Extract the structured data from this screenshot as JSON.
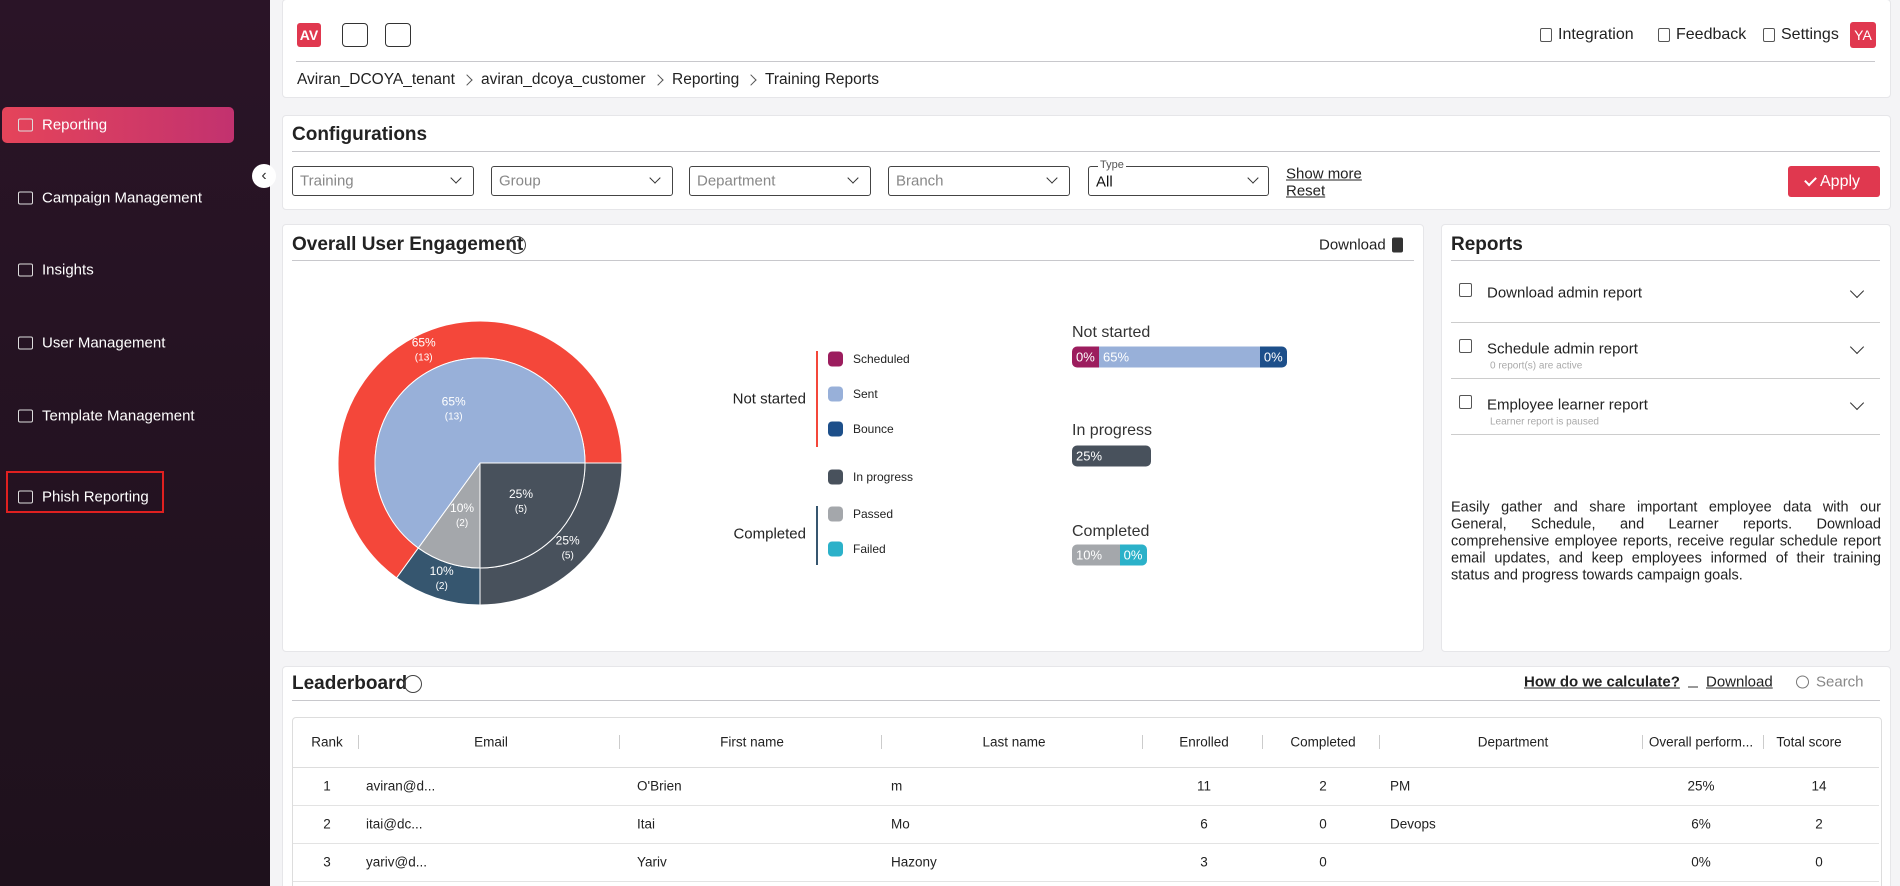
{
  "header": {
    "logo": "AV",
    "links": [
      "Integration",
      "Feedback",
      "Settings"
    ],
    "avatar": "YA",
    "breadcrumb": [
      "Aviran_DCOYA_tenant",
      "aviran_dcoya_customer",
      "Reporting",
      "Training Reports"
    ]
  },
  "sidebar": {
    "items": [
      "Reporting",
      "Campaign Management",
      "Insights",
      "User Management",
      "Template Management",
      "Phish Reporting"
    ]
  },
  "configurations": {
    "title": "Configurations",
    "filters": [
      "Training",
      "Group",
      "Department",
      "Branch"
    ],
    "type_label": "Type",
    "type_value": "All",
    "show_more": "Show more",
    "reset": "Reset",
    "apply": "Apply"
  },
  "engagement": {
    "title": "Overall User Engagement",
    "download": "Download",
    "pie": {
      "outer": {
        "values": [
          25,
          10,
          65
        ],
        "value_labels": [
          "25%",
          "10%",
          "65%"
        ],
        "counts": [
          "(5)",
          "(2)",
          "(13)"
        ],
        "colors": [
          "#48515c",
          "#36566f",
          "#f4473a"
        ]
      },
      "inner": {
        "values": [
          25,
          10,
          65
        ],
        "value_labels": [
          "25%",
          "10%",
          "65%"
        ],
        "counts": [
          "(5)",
          "(2)",
          "(13)"
        ],
        "colors": [
          "#48515c",
          "#a4a7ab",
          "#98b0d9"
        ]
      }
    },
    "legend": {
      "groups": [
        {
          "label": "Not started",
          "color": "#f4473a"
        },
        {
          "label": "Completed",
          "color": "#36566f"
        }
      ],
      "items": [
        {
          "name": "Scheduled",
          "color": "#9c1d5e"
        },
        {
          "name": "Sent",
          "color": "#98b0d9"
        },
        {
          "name": "Bounce",
          "color": "#1d4f8a"
        },
        {
          "name": "In progress",
          "color": "#48515c"
        },
        {
          "name": "Passed",
          "color": "#a4a7ab"
        },
        {
          "name": "Failed",
          "color": "#2bb1c9"
        }
      ]
    },
    "bars": [
      {
        "label": "Not started",
        "segments": [
          {
            "value": 0,
            "label": "0%",
            "color": "#9c1d5e"
          },
          {
            "value": 65,
            "label": "65%",
            "color": "#98b0d9"
          },
          {
            "value": 0,
            "label": "0%",
            "color": "#1d4f8a"
          }
        ]
      },
      {
        "label": "In progress",
        "segments": [
          {
            "value": 25,
            "label": "25%",
            "color": "#48515c"
          }
        ]
      },
      {
        "label": "Completed",
        "segments": [
          {
            "value": 10,
            "label": "10%",
            "color": "#a4a7ab"
          },
          {
            "value": 0,
            "label": "0%",
            "color": "#2bb1c9"
          }
        ]
      }
    ]
  },
  "reports": {
    "title": "Reports",
    "items": [
      {
        "title": "Download admin report"
      },
      {
        "title": "Schedule admin report",
        "sub": "0 report(s) are active"
      },
      {
        "title": "Employee learner report",
        "sub": "Learner report is paused"
      }
    ],
    "description": "Easily gather and share important employee data with our General, Schedule, and Learner reports. Download comprehensive employee reports, receive regular schedule report email updates, and keep employees informed of their training status and progress towards campaign goals."
  },
  "leaderboard": {
    "title": "Leaderboard",
    "calc": "How do we calculate?",
    "download": "Download",
    "search": "Search",
    "columns": [
      "Rank",
      "Email",
      "First name",
      "Last name",
      "Enrolled",
      "Completed",
      "Department",
      "Overall perform...",
      "Total score"
    ],
    "rows": [
      [
        "1",
        "aviran@d...",
        "O'Brien",
        "m",
        "11",
        "2",
        "PM",
        "25%",
        "14"
      ],
      [
        "2",
        "itai@dc...",
        "Itai",
        "Mo",
        "6",
        "0",
        "Devops",
        "6%",
        "2"
      ],
      [
        "3",
        "yariv@d...",
        "Yariv",
        "Hazony",
        "3",
        "0",
        "",
        "0%",
        "0"
      ]
    ]
  }
}
